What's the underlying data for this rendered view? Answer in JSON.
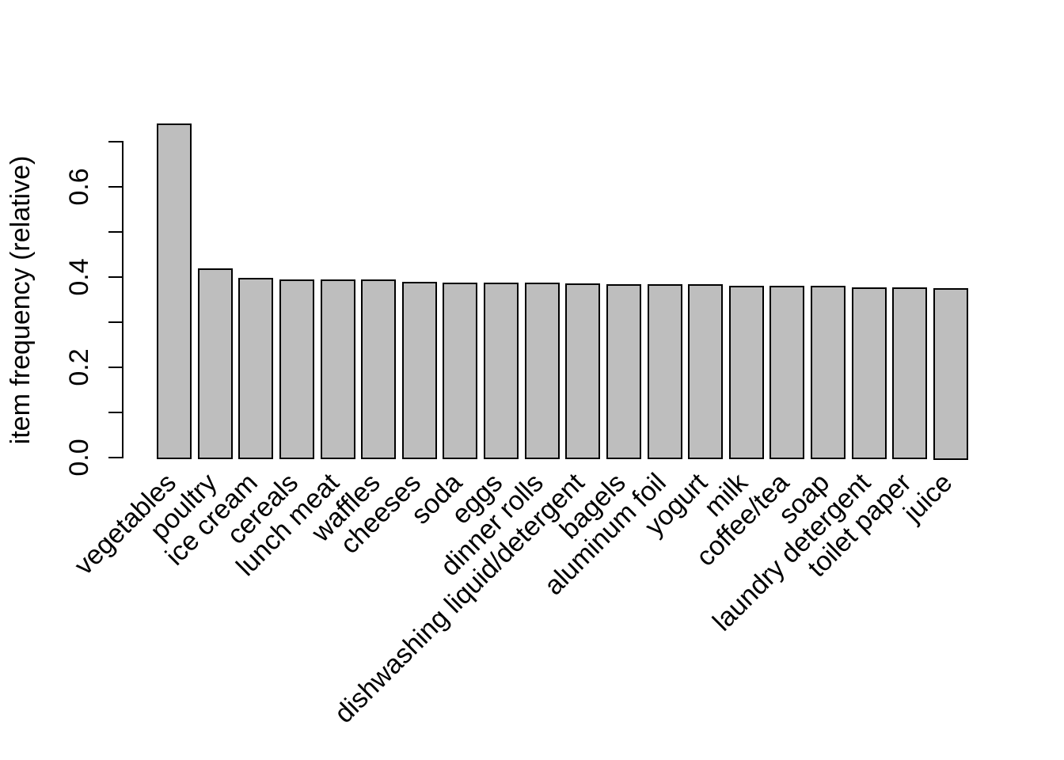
{
  "chart_data": {
    "type": "bar",
    "title": "",
    "xlabel": "",
    "ylabel": "item frequency (relative)",
    "categories": [
      "vegetables",
      "poultry",
      "ice cream",
      "cereals",
      "lunch meat",
      "waffles",
      "cheeses",
      "soda",
      "eggs",
      "dinner rolls",
      "dishwashing liquid/detergent",
      "bagels",
      "aluminum foil",
      "yogurt",
      "milk",
      "coffee/tea",
      "soap",
      "laundry detergent",
      "toilet paper",
      "juice"
    ],
    "values": [
      0.74,
      0.42,
      0.398,
      0.395,
      0.395,
      0.394,
      0.389,
      0.388,
      0.388,
      0.387,
      0.386,
      0.385,
      0.384,
      0.384,
      0.381,
      0.38,
      0.38,
      0.378,
      0.378,
      0.375
    ],
    "ylim": [
      0,
      0.74
    ],
    "yticks": [
      0.0,
      0.1,
      0.2,
      0.3,
      0.4,
      0.5,
      0.6,
      0.7
    ],
    "ytick_labeled_values": [
      0.0,
      0.2,
      0.4,
      0.6
    ],
    "ytick_labels": [
      "0.0",
      "0.2",
      "0.4",
      "0.6"
    ],
    "x_label_rotation_deg": 45,
    "grid": false,
    "legend": null,
    "colors": {
      "bar_fill": "#bebebe",
      "bar_border": "#000000",
      "axis": "#000000",
      "text": "#000000",
      "background": "#ffffff"
    }
  }
}
